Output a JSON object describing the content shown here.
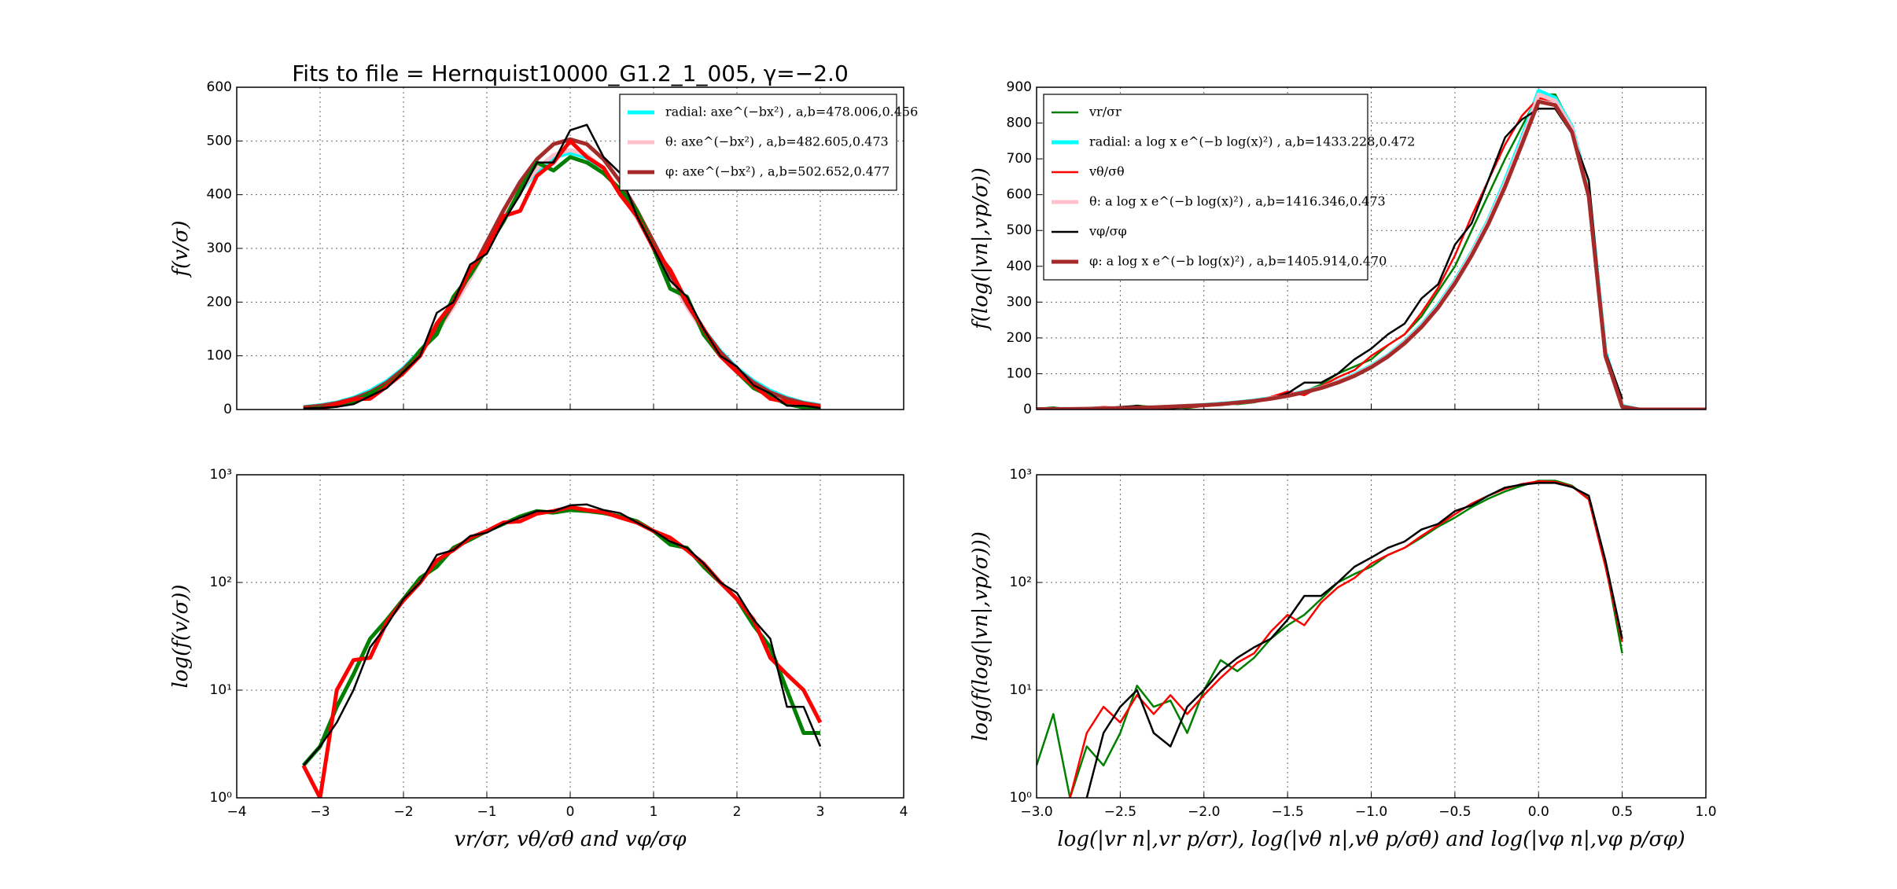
{
  "chart_data": [
    {
      "type": "line",
      "title": "Fits to file = Hernquist10000_G1.2_1_005, γ=−2.0",
      "ylabel": "f(v/σ)",
      "xlim": [
        -4,
        4
      ],
      "xticks": [
        -4,
        -3,
        -2,
        -1,
        0,
        1,
        2,
        3,
        4
      ],
      "show_xtick_labels": false,
      "ylim": [
        0,
        600
      ],
      "yticks": [
        0,
        100,
        200,
        300,
        400,
        500,
        600
      ],
      "grid": true,
      "legend": "upper right",
      "x": [
        -3.2,
        -3.0,
        -2.8,
        -2.6,
        -2.4,
        -2.2,
        -2.0,
        -1.8,
        -1.6,
        -1.4,
        -1.2,
        -1.0,
        -0.8,
        -0.6,
        -0.4,
        -0.2,
        0,
        0.2,
        0.4,
        0.6,
        0.8,
        1.0,
        1.2,
        1.4,
        1.6,
        1.8,
        2.0,
        2.2,
        2.4,
        2.6,
        2.8,
        3.0
      ],
      "series": [
        {
          "name": "radial: axe^(−bx²) , a,b=478.006,0.456",
          "color": "#00ffff",
          "values": [
            4.5,
            7.9,
            13,
            22,
            35,
            53,
            77,
            109,
            149,
            196,
            248,
            303,
            357,
            406,
            444,
            469,
            478,
            469,
            444,
            406,
            357,
            303,
            248,
            196,
            149,
            109,
            77,
            53,
            35,
            22,
            13,
            7.9
          ]
        },
        {
          "name": "θ: axe^(−bx²) , a,b=482.605,0.473",
          "color": "#ffc0cb",
          "values": [
            3.8,
            6.9,
            12,
            20,
            32,
            49,
            73,
            104,
            144,
            191,
            244,
            301,
            357,
            407,
            448,
            474,
            483,
            474,
            448,
            407,
            357,
            301,
            244,
            191,
            144,
            104,
            73,
            49,
            32,
            20,
            12,
            6.9
          ]
        },
        {
          "name": "φ: axe^(−bx²) , a,b=502.652,0.477",
          "color": "#a52a2a",
          "values": [
            3.8,
            6.9,
            12,
            20,
            32,
            50,
            75,
            107,
            148,
            197,
            253,
            312,
            371,
            424,
            466,
            494,
            503,
            494,
            466,
            424,
            371,
            312,
            253,
            197,
            148,
            107,
            75,
            50,
            32,
            20,
            12,
            6.9
          ]
        },
        {
          "color": "#008000",
          "values": [
            2,
            3,
            7,
            14,
            30,
            45,
            70,
            110,
            140,
            210,
            250,
            300,
            350,
            410,
            460,
            445,
            470,
            460,
            440,
            410,
            370,
            300,
            225,
            210,
            140,
            100,
            70,
            40,
            25,
            10,
            4,
            4
          ]
        },
        {
          "color": "#ff0000",
          "values": [
            2,
            1,
            10,
            19,
            20,
            43,
            68,
            100,
            160,
            200,
            260,
            300,
            360,
            370,
            435,
            460,
            500,
            470,
            450,
            400,
            360,
            300,
            260,
            200,
            150,
            100,
            70,
            45,
            20,
            14,
            10,
            5
          ]
        },
        {
          "color": "#000000",
          "values": [
            2,
            3,
            5,
            10,
            25,
            40,
            70,
            100,
            180,
            200,
            270,
            290,
            350,
            400,
            460,
            460,
            520,
            530,
            470,
            440,
            360,
            300,
            240,
            210,
            150,
            100,
            80,
            45,
            30,
            7,
            7,
            3
          ]
        }
      ]
    },
    {
      "type": "line",
      "ylabel": "f(log(|vn|,vp/σ))",
      "xlim": [
        -3,
        1
      ],
      "xticks": [
        -3,
        -2.5,
        -2,
        -1.5,
        -1,
        -0.5,
        0,
        0.5,
        1
      ],
      "show_xtick_labels": false,
      "ylim": [
        0,
        900
      ],
      "yticks": [
        0,
        100,
        200,
        300,
        400,
        500,
        600,
        700,
        800,
        900
      ],
      "grid": true,
      "legend": "upper left",
      "x": [
        -3.0,
        -2.9,
        -2.8,
        -2.7,
        -2.6,
        -2.5,
        -2.4,
        -2.3,
        -2.2,
        -2.1,
        -2.0,
        -1.9,
        -1.8,
        -1.7,
        -1.6,
        -1.5,
        -1.4,
        -1.3,
        -1.2,
        -1.1,
        -1.0,
        -0.9,
        -0.8,
        -0.7,
        -0.6,
        -0.5,
        -0.4,
        -0.3,
        -0.2,
        -0.1,
        0,
        0.1,
        0.2,
        0.3,
        0.4,
        0.5,
        0.6,
        0.7,
        0.8,
        0.9,
        1.0
      ],
      "series": [
        {
          "name": "vr/σr",
          "color": "#008000",
          "values": [
            2,
            6,
            1,
            3,
            2,
            4,
            11,
            7,
            8,
            4,
            10,
            19,
            15,
            20,
            30,
            40,
            50,
            70,
            100,
            120,
            140,
            180,
            210,
            260,
            330,
            400,
            500,
            600,
            700,
            790,
            880,
            880,
            790,
            600,
            150,
            22,
            null,
            null,
            null,
            null,
            null
          ]
        },
        {
          "name": "radial: a log x e^(−b log(x)²) , a,b=1433.228,0.472",
          "color": "#00ffff",
          "values": [
            1,
            1,
            2,
            2,
            3,
            4,
            5,
            6,
            8,
            10,
            13,
            16,
            20,
            25,
            32,
            40,
            50,
            62,
            78,
            98,
            122,
            152,
            190,
            236,
            292,
            360,
            440,
            530,
            640,
            760,
            890,
            870,
            790,
            610,
            160,
            10,
            0,
            0,
            0,
            0,
            0
          ]
        },
        {
          "name": "vθ/σθ",
          "color": "#ff0000",
          "values": [
            null,
            null,
            1,
            4,
            7,
            5,
            9,
            6,
            9,
            6,
            9,
            13,
            18,
            22,
            35,
            50,
            40,
            65,
            90,
            110,
            150,
            180,
            210,
            270,
            340,
            430,
            540,
            640,
            740,
            820,
            870,
            860,
            780,
            590,
            140,
            28,
            null,
            null,
            null,
            null,
            null
          ]
        },
        {
          "name": "θ: a log x e^(−b log(x)²) , a,b=1416.346,0.473",
          "color": "#ffc0cb",
          "values": [
            1,
            1,
            2,
            2,
            3,
            4,
            5,
            6,
            8,
            10,
            12,
            15,
            19,
            24,
            31,
            39,
            49,
            61,
            77,
            96,
            120,
            150,
            188,
            233,
            288,
            356,
            436,
            525,
            632,
            750,
            880,
            862,
            785,
            600,
            150,
            8,
            0,
            0,
            0,
            0,
            0
          ]
        },
        {
          "name": "vφ/σφ",
          "color": "#000000",
          "values": [
            null,
            null,
            null,
            1,
            4,
            7,
            10,
            4,
            3,
            7,
            10,
            15,
            20,
            25,
            30,
            45,
            75,
            75,
            100,
            140,
            170,
            210,
            240,
            310,
            350,
            460,
            520,
            640,
            760,
            810,
            840,
            840,
            770,
            640,
            160,
            30,
            null,
            null,
            null,
            null,
            null
          ]
        },
        {
          "name": "φ: a log x e^(−b log(x)²) , a,b=1405.914,0.470",
          "color": "#a52a2a",
          "values": [
            1,
            1,
            1,
            2,
            3,
            4,
            5,
            6,
            8,
            10,
            12,
            15,
            19,
            24,
            30,
            38,
            48,
            60,
            75,
            94,
            118,
            148,
            185,
            230,
            285,
            352,
            430,
            518,
            622,
            740,
            860,
            850,
            775,
            595,
            150,
            8,
            0,
            0,
            0,
            0,
            0
          ]
        }
      ]
    },
    {
      "type": "line",
      "ylabel": "log(f(v/σ))",
      "xlabel": "vr/σr, vθ/σθ and vφ/σφ",
      "xlim": [
        -4,
        4
      ],
      "xticks": [
        {
          "value": -4,
          "label": "−4"
        },
        {
          "value": -3,
          "label": "−3"
        },
        {
          "value": -2,
          "label": "−2"
        },
        {
          "value": -1,
          "label": "−1"
        },
        0,
        1,
        2,
        3,
        4
      ],
      "yscale": "log",
      "ylim": [
        1,
        1000
      ],
      "yticks": [
        {
          "value": 1,
          "label": "10⁰"
        },
        {
          "value": 10,
          "label": "10¹"
        },
        {
          "value": 100,
          "label": "10²"
        },
        {
          "value": 1000,
          "label": "10³"
        }
      ],
      "grid": true,
      "x": [
        -3.2,
        -3.0,
        -2.8,
        -2.6,
        -2.4,
        -2.2,
        -2.0,
        -1.8,
        -1.6,
        -1.4,
        -1.2,
        -1.0,
        -0.8,
        -0.6,
        -0.4,
        -0.2,
        0,
        0.2,
        0.4,
        0.6,
        0.8,
        1.0,
        1.2,
        1.4,
        1.6,
        1.8,
        2.0,
        2.2,
        2.4,
        2.6,
        2.8,
        3.0
      ],
      "series": [
        {
          "color": "#008000",
          "values": [
            2,
            3,
            7,
            14,
            30,
            45,
            70,
            110,
            140,
            210,
            250,
            300,
            350,
            410,
            460,
            445,
            470,
            460,
            440,
            410,
            370,
            300,
            225,
            210,
            140,
            100,
            70,
            40,
            25,
            10,
            4,
            4
          ]
        },
        {
          "color": "#ff0000",
          "values": [
            2,
            1,
            10,
            19,
            20,
            43,
            68,
            100,
            160,
            200,
            260,
            300,
            360,
            370,
            435,
            460,
            500,
            470,
            450,
            400,
            360,
            300,
            260,
            200,
            150,
            100,
            70,
            45,
            20,
            14,
            10,
            5
          ]
        },
        {
          "color": "#000000",
          "values": [
            2,
            3,
            5,
            10,
            25,
            40,
            70,
            100,
            180,
            200,
            270,
            290,
            350,
            400,
            460,
            460,
            520,
            530,
            470,
            440,
            360,
            300,
            240,
            210,
            150,
            100,
            80,
            45,
            30,
            7,
            7,
            3
          ]
        }
      ]
    },
    {
      "type": "line",
      "ylabel": "log(f(log(|vn|,vp/σ)))",
      "xlabel": "log(|vr n|,vr p/σr), log(|vθ n|,vθ p/σθ) and log(|vφ n|,vφ p/σφ)",
      "xlim": [
        -3,
        1
      ],
      "xticks": [
        {
          "value": -3,
          "label": "−3.0"
        },
        {
          "value": -2.5,
          "label": "−2.5"
        },
        {
          "value": -2,
          "label": "−2.0"
        },
        {
          "value": -1.5,
          "label": "−1.5"
        },
        {
          "value": -1,
          "label": "−1.0"
        },
        {
          "value": -0.5,
          "label": "−0.5"
        },
        {
          "value": 0,
          "label": "0.0"
        },
        0.5,
        {
          "value": 1,
          "label": "1.0"
        }
      ],
      "yscale": "log",
      "ylim": [
        1,
        1000
      ],
      "yticks": [
        {
          "value": 1,
          "label": "10⁰"
        },
        {
          "value": 10,
          "label": "10¹"
        },
        {
          "value": 100,
          "label": "10²"
        },
        {
          "value": 1000,
          "label": "10³"
        }
      ],
      "grid": true,
      "x": [
        -3.0,
        -2.9,
        -2.8,
        -2.7,
        -2.6,
        -2.5,
        -2.4,
        -2.3,
        -2.2,
        -2.1,
        -2.0,
        -1.9,
        -1.8,
        -1.7,
        -1.6,
        -1.5,
        -1.4,
        -1.3,
        -1.2,
        -1.1,
        -1.0,
        -0.9,
        -0.8,
        -0.7,
        -0.6,
        -0.5,
        -0.4,
        -0.3,
        -0.2,
        -0.1,
        0,
        0.1,
        0.2,
        0.3,
        0.4,
        0.5,
        0.6,
        0.7,
        0.8,
        0.9,
        1.0
      ],
      "series": [
        {
          "color": "#008000",
          "values": [
            2,
            6,
            1,
            3,
            2,
            4,
            11,
            7,
            8,
            4,
            10,
            19,
            15,
            20,
            30,
            40,
            50,
            70,
            100,
            120,
            140,
            180,
            210,
            260,
            330,
            400,
            500,
            600,
            700,
            790,
            880,
            880,
            790,
            600,
            150,
            22,
            null,
            null,
            null,
            null,
            null
          ]
        },
        {
          "color": "#ff0000",
          "values": [
            null,
            null,
            1,
            4,
            7,
            5,
            9,
            6,
            9,
            6,
            9,
            13,
            18,
            22,
            35,
            50,
            40,
            65,
            90,
            110,
            150,
            180,
            210,
            270,
            340,
            430,
            540,
            640,
            740,
            820,
            870,
            860,
            780,
            590,
            140,
            28,
            null,
            null,
            null,
            null,
            null
          ]
        },
        {
          "color": "#000000",
          "values": [
            null,
            null,
            null,
            1,
            4,
            7,
            10,
            4,
            3,
            7,
            10,
            15,
            20,
            25,
            30,
            45,
            75,
            75,
            100,
            140,
            170,
            210,
            240,
            310,
            350,
            460,
            520,
            640,
            760,
            810,
            840,
            840,
            770,
            640,
            160,
            30,
            null,
            null,
            null,
            null,
            null
          ]
        }
      ]
    }
  ]
}
